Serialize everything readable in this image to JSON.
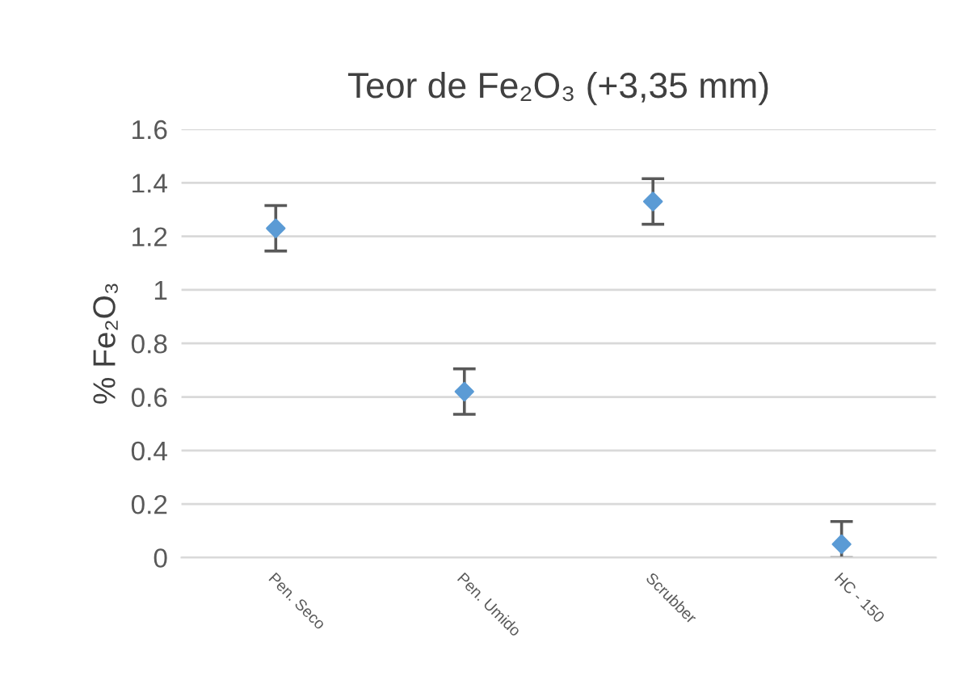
{
  "chart_data": {
    "type": "scatter",
    "title": "Teor de Fe₂O₃ (+3,35 mm)",
    "ylabel": "% Fe₂O₃",
    "categories": [
      "Pen. Seco",
      "Pen. Umido",
      "Scrubber",
      "HC - 150"
    ],
    "series": [
      {
        "color": "#5b9bd5",
        "values": [
          1.23,
          0.62,
          1.33,
          0.05
        ],
        "errors": [
          0.085,
          0.085,
          0.085,
          [
            0,
            0.135
          ]
        ]
      }
    ],
    "ylim": [
      0,
      1.6
    ],
    "yticks": [
      0,
      0.2,
      0.4,
      0.6,
      0.8,
      1,
      1.2,
      1.4,
      1.6
    ],
    "grid": "y",
    "marker": "diamond",
    "legend": false
  }
}
